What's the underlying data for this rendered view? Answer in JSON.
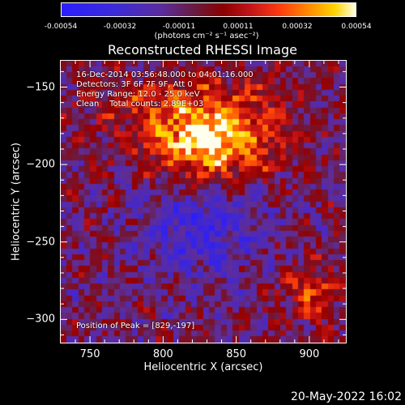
{
  "colorbar": {
    "ticks": [
      "-0.00054",
      "-0.00032",
      "-0.00011",
      "0.00011",
      "0.00032",
      "0.00054"
    ],
    "unit": "(photons cm⁻² s⁻¹ asec⁻²)"
  },
  "title": "Reconstructed RHESSI Image",
  "info": {
    "line1": "16-Dec-2014 03:56:48.000 to 04:01:16.000",
    "line2": "Detectors: 3F 6F 7F 9F, Att 0",
    "line3": "Energy Range: 12.0 - 25.0 keV",
    "line4": "Clean    Total counts: 2.89E+03",
    "peak": "Position of Peak = [829,-197]"
  },
  "chart_data": {
    "type": "heatmap",
    "title": "Reconstructed RHESSI Image",
    "xlabel": "Heliocentric X (arcsec)",
    "ylabel": "Heliocentric Y (arcsec)",
    "xlim": [
      730,
      925
    ],
    "ylim": [
      -315,
      -133
    ],
    "xticks": [
      750,
      800,
      850,
      900
    ],
    "yticks": [
      -150,
      -200,
      -250,
      -300
    ],
    "color_range": [
      -0.00054,
      0.00054
    ],
    "colormap": "blue-purple-red-yellow-white",
    "peak_position": [
      829,
      -197
    ]
  },
  "timestamp": "20-May-2022 16:02"
}
